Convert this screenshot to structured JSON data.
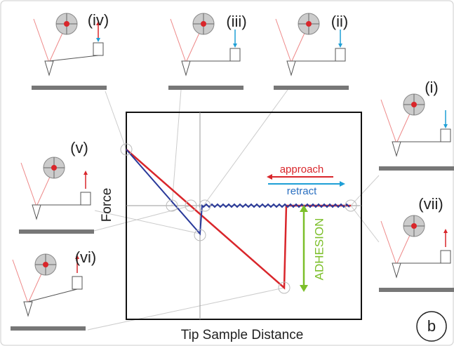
{
  "panels": [
    {
      "label": "(i)"
    },
    {
      "label": "(ii)"
    },
    {
      "label": "(iii)"
    },
    {
      "label": "(iv)"
    },
    {
      "label": "(v)"
    },
    {
      "label": "(vi)"
    },
    {
      "label": "(vii)"
    }
  ],
  "plot": {
    "y_label": "Force",
    "x_label": "Tip Sample Distance",
    "legend": [
      {
        "name": "approach"
      },
      {
        "name": "retract"
      }
    ],
    "annotation": "ADHESION"
  },
  "panel_letter": "b"
}
